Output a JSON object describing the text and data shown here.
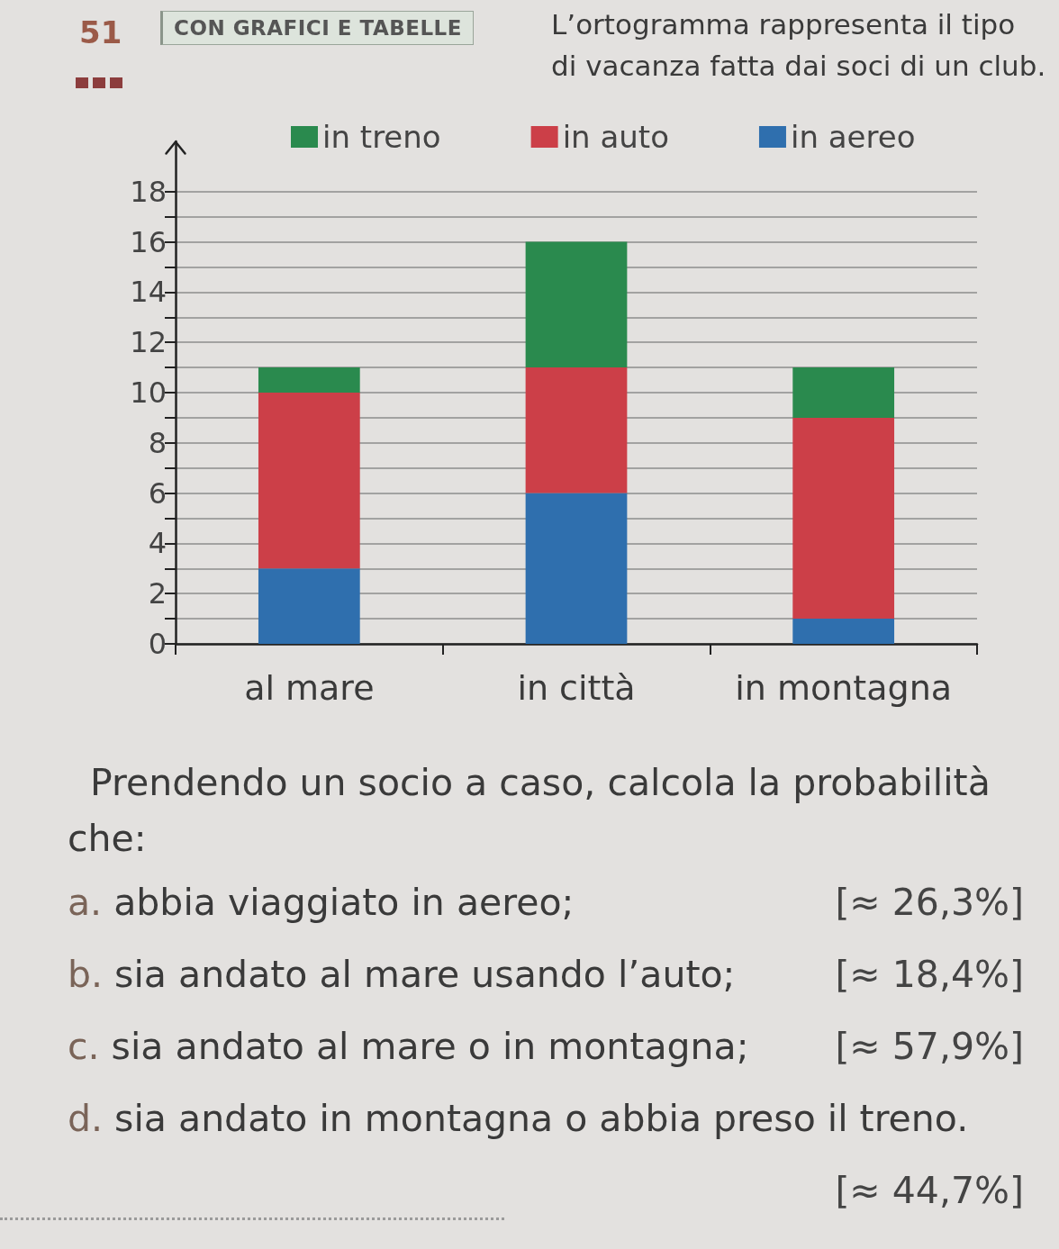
{
  "chart_data": {
    "type": "bar",
    "title": "L’ortogramma rappresenta il tipo di vacanza fatta dai soci di un club.",
    "subtitle": "CON GRAFICI E TABELLE",
    "categories": [
      "al mare",
      "in città",
      "in montagna"
    ],
    "stacked": true,
    "series": [
      {
        "name": "in aereo",
        "color": "#2f6fae",
        "values": [
          3,
          6,
          1
        ]
      },
      {
        "name": "in auto",
        "color": "#cc3f48",
        "values": [
          7,
          5,
          8
        ]
      },
      {
        "name": "in treno",
        "color": "#2a8a4e",
        "values": [
          1,
          5,
          2
        ]
      }
    ],
    "ylim": [
      0,
      20
    ],
    "yticks": [
      0,
      {
        "value": 1,
        "label": null
      },
      2,
      {
        "value": 3,
        "label": null
      },
      4,
      {
        "value": 5,
        "label": null
      },
      6,
      {
        "value": 7,
        "label": null
      },
      8,
      {
        "value": 9,
        "label": null
      },
      10,
      {
        "value": 11,
        "label": null
      },
      12,
      {
        "value": 13,
        "label": null
      },
      14,
      {
        "value": 15,
        "label": null
      },
      16,
      {
        "value": 17,
        "label": null
      },
      18
    ],
    "grid": "y",
    "legend": "top",
    "annotations": [
      "51",
      "Prendendo un socio a caso, calcola la probabilità che:",
      "a. abbia viaggiato in aereo;",
      "[≈ 26,3%]",
      "b. sia andato al mare usando l’auto;",
      "[≈ 18,4%]",
      "c. sia andato al mare o in montagna;",
      "[≈ 57,9%]",
      "d. sia andato in montagna o abbia preso il treno.",
      "[≈ 44,7%]"
    ]
  }
}
